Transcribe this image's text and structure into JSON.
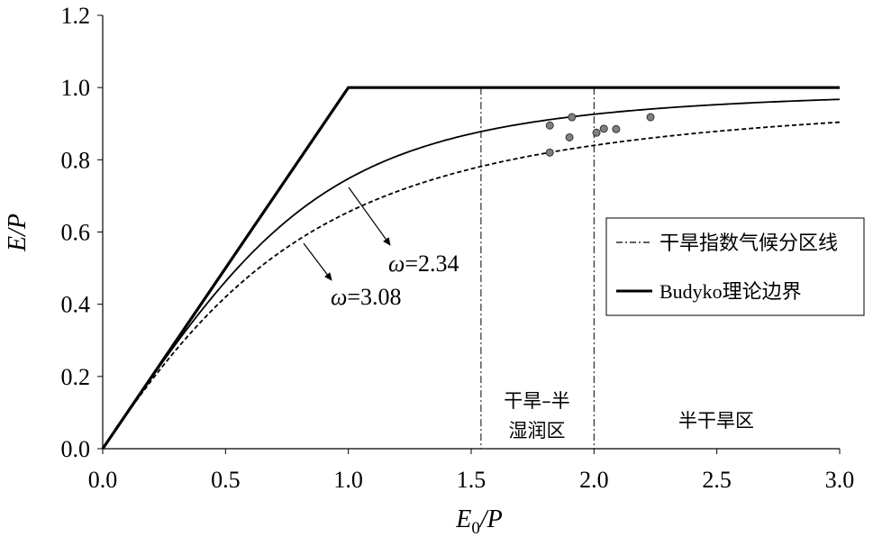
{
  "chart_data": {
    "type": "line",
    "xlabel": {
      "italic_main": "E",
      "subscript": "0",
      "suffix": "/P"
    },
    "ylabel": "E/P",
    "xlim": [
      0,
      3.0
    ],
    "ylim": [
      0,
      1.2
    ],
    "xticks": [
      "0.0",
      "0.5",
      "1.0",
      "1.5",
      "2.0",
      "2.5",
      "3.0"
    ],
    "yticks": [
      "0.0",
      "0.2",
      "0.4",
      "0.6",
      "0.8",
      "1.0",
      "1.2"
    ],
    "xtick_values": [
      0,
      0.5,
      1.0,
      1.5,
      2.0,
      2.5,
      3.0
    ],
    "ytick_values": [
      0,
      0.2,
      0.4,
      0.6,
      0.8,
      1.0,
      1.2
    ],
    "series": [
      {
        "name": "Budyko理论边界",
        "style": "thick-solid",
        "x": [
          0,
          1.0,
          3.0
        ],
        "y": [
          0,
          1.0,
          1.0
        ]
      },
      {
        "style": "solid",
        "omega": 3.08
      },
      {
        "style": "dashed",
        "omega": 2.34
      }
    ],
    "scatter_points": [
      {
        "x": 1.82,
        "y": 0.895
      },
      {
        "x": 1.91,
        "y": 0.918
      },
      {
        "x": 1.82,
        "y": 0.82
      },
      {
        "x": 1.9,
        "y": 0.862
      },
      {
        "x": 2.01,
        "y": 0.875
      },
      {
        "x": 2.04,
        "y": 0.886
      },
      {
        "x": 2.09,
        "y": 0.885
      },
      {
        "x": 2.23,
        "y": 0.918
      }
    ],
    "vertical_dividers": [
      1.54,
      2.0
    ],
    "regions": [
      {
        "line1": "干旱–半",
        "line2": "湿润区",
        "x_center": 1.77
      },
      {
        "line1": "半干旱区",
        "x_center": 2.5
      }
    ],
    "annotations": [
      {
        "label": "ω=2.34",
        "symbol": "ω",
        "value": "=2.34"
      },
      {
        "label": "ω=3.08",
        "symbol": "ω",
        "value": "=3.08"
      }
    ],
    "legend": {
      "placement": "right",
      "entries": [
        {
          "label": "干旱指数气候分区线",
          "style": "dash-dot"
        },
        {
          "label": "Budyko理论边界",
          "style": "thick-solid"
        }
      ]
    }
  }
}
